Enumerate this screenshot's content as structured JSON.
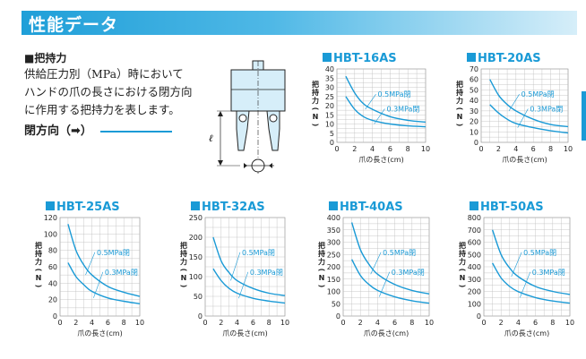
{
  "header": {
    "title": "性能データ"
  },
  "section": {
    "title": "■把持力",
    "description": "供給圧力別（MPa）時においてハンドの爪の長さにおける閉方向に作用する把持力を表します。",
    "direction_label": "閉方向（➡）"
  },
  "diagram": {
    "length_symbol": "ℓ"
  },
  "chart_data": [
    {
      "type": "line",
      "title": "HBT-16AS",
      "xlabel": "爪の長さ(cm)",
      "ylabel": "把持力(N)",
      "x_ticks": [
        0,
        2,
        4,
        6,
        8,
        10
      ],
      "y_ticks": [
        0,
        5,
        10,
        15,
        20,
        25,
        30,
        35,
        40
      ],
      "xlim": [
        0,
        10
      ],
      "ylim": [
        0,
        40
      ],
      "series": [
        {
          "name": "0.5MPa閉",
          "x": [
            1,
            2,
            3,
            4,
            6,
            8,
            10
          ],
          "y": [
            36,
            27,
            21,
            18,
            14,
            12,
            11
          ]
        },
        {
          "name": "0.3MPa閉",
          "x": [
            1,
            2,
            3,
            4,
            6,
            8,
            10
          ],
          "y": [
            25,
            18,
            14,
            12,
            10,
            9,
            8.5
          ]
        }
      ]
    },
    {
      "type": "line",
      "title": "HBT-20AS",
      "xlabel": "爪の長さ(cm)",
      "ylabel": "把持力(N)",
      "x_ticks": [
        0,
        2,
        4,
        6,
        8,
        10
      ],
      "y_ticks": [
        0,
        10,
        20,
        30,
        40,
        50,
        60,
        70
      ],
      "xlim": [
        0,
        10
      ],
      "ylim": [
        0,
        70
      ],
      "series": [
        {
          "name": "0.5MPa閉",
          "x": [
            1,
            2,
            3,
            4,
            6,
            8,
            10
          ],
          "y": [
            60,
            45,
            36,
            30,
            22,
            17,
            15
          ]
        },
        {
          "name": "0.3MPa閉",
          "x": [
            1,
            2,
            3,
            4,
            6,
            8,
            10
          ],
          "y": [
            36,
            28,
            22,
            18,
            14,
            11,
            9
          ]
        }
      ]
    },
    {
      "type": "line",
      "title": "HBT-25AS",
      "xlabel": "爪の長さ(cm)",
      "ylabel": "把持力(N)",
      "x_ticks": [
        0,
        2,
        4,
        6,
        8,
        10
      ],
      "y_ticks": [
        0,
        20,
        40,
        60,
        80,
        100,
        120
      ],
      "xlim": [
        0,
        10
      ],
      "ylim": [
        0,
        120
      ],
      "series": [
        {
          "name": "0.5MPa閉",
          "x": [
            1,
            2,
            3,
            4,
            6,
            8,
            10
          ],
          "y": [
            112,
            80,
            62,
            50,
            36,
            29,
            24
          ]
        },
        {
          "name": "0.3MPa閉",
          "x": [
            1,
            2,
            3,
            4,
            6,
            8,
            10
          ],
          "y": [
            65,
            48,
            38,
            30,
            22,
            18,
            15
          ]
        }
      ]
    },
    {
      "type": "line",
      "title": "HBT-32AS",
      "xlabel": "爪の長さ(cm)",
      "ylabel": "把持力(N)",
      "x_ticks": [
        0,
        2,
        4,
        6,
        8,
        10
      ],
      "y_ticks": [
        0,
        50,
        100,
        150,
        200,
        250
      ],
      "xlim": [
        0,
        10
      ],
      "ylim": [
        0,
        250
      ],
      "series": [
        {
          "name": "0.5MPa閉",
          "x": [
            1,
            2,
            3,
            4,
            6,
            8,
            10
          ],
          "y": [
            200,
            140,
            110,
            90,
            70,
            58,
            52
          ]
        },
        {
          "name": "0.3MPa閉",
          "x": [
            1,
            2,
            3,
            4,
            6,
            8,
            10
          ],
          "y": [
            120,
            90,
            70,
            58,
            45,
            38,
            33
          ]
        }
      ]
    },
    {
      "type": "line",
      "title": "HBT-40AS",
      "xlabel": "爪の長さ(cm)",
      "ylabel": "把持力(N)",
      "x_ticks": [
        0,
        2,
        4,
        6,
        8,
        10
      ],
      "y_ticks": [
        0,
        50,
        100,
        150,
        200,
        250,
        300,
        350,
        400
      ],
      "xlim": [
        0,
        10
      ],
      "ylim": [
        0,
        400
      ],
      "series": [
        {
          "name": "0.5MPa閉",
          "x": [
            1,
            2,
            3,
            4,
            6,
            8,
            10
          ],
          "y": [
            380,
            270,
            210,
            170,
            128,
            104,
            90
          ]
        },
        {
          "name": "0.3MPa閉",
          "x": [
            1,
            2,
            3,
            4,
            6,
            8,
            10
          ],
          "y": [
            230,
            165,
            128,
            104,
            78,
            62,
            52
          ]
        }
      ]
    },
    {
      "type": "line",
      "title": "HBT-50AS",
      "xlabel": "爪の長さ(cm)",
      "ylabel": "把持力(N)",
      "x_ticks": [
        0,
        2,
        4,
        6,
        8,
        10
      ],
      "y_ticks": [
        0,
        100,
        200,
        300,
        400,
        500,
        600,
        700,
        800
      ],
      "xlim": [
        0,
        10
      ],
      "ylim": [
        0,
        800
      ],
      "series": [
        {
          "name": "0.5MPa閉",
          "x": [
            1,
            2,
            3,
            4,
            6,
            8,
            10
          ],
          "y": [
            700,
            500,
            390,
            320,
            240,
            200,
            175
          ]
        },
        {
          "name": "0.3MPa閉",
          "x": [
            1,
            2,
            3,
            4,
            6,
            8,
            10
          ],
          "y": [
            430,
            310,
            240,
            198,
            150,
            122,
            105
          ]
        }
      ]
    }
  ]
}
